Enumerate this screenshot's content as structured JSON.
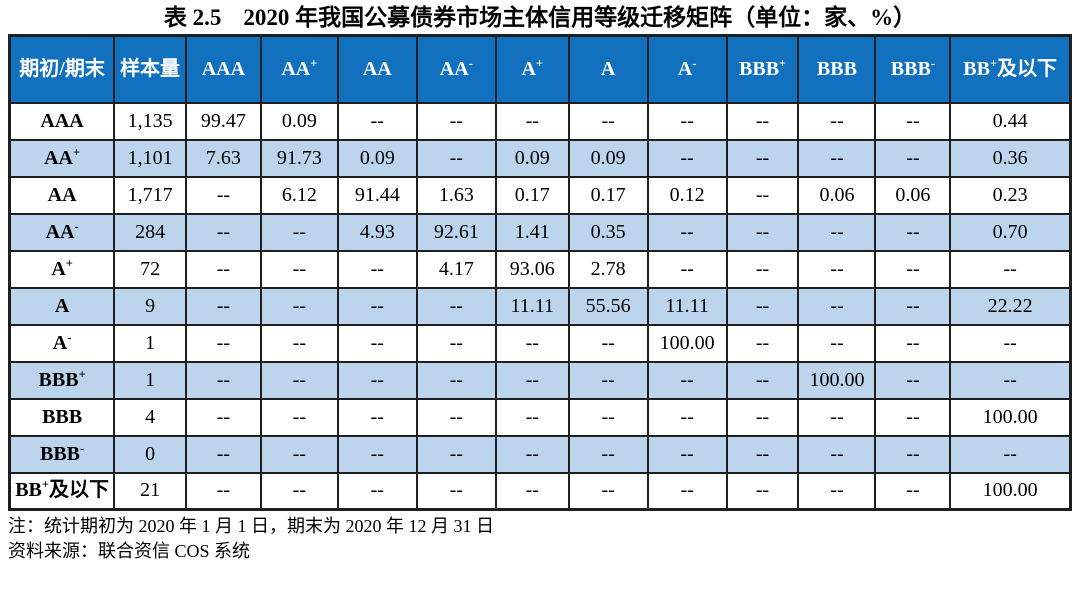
{
  "title": {
    "label": "表 2.5",
    "text": "2020 年我国公募债券市场主体信用等级迁移矩阵（单位：家、%）"
  },
  "colors": {
    "header_bg": "#1171be",
    "header_text": "#ffffff",
    "alt_row_bg": "#bcd5ec",
    "border": "#1f1f1f"
  },
  "chart_data": {
    "type": "table",
    "title": "表 2.5 2020 年我国公募债券市场主体信用等级迁移矩阵（单位：家、%）",
    "header": [
      {
        "base": "期初/期末"
      },
      {
        "base": "样本量"
      },
      {
        "base": "AAA"
      },
      {
        "base": "AA",
        "sup": "+"
      },
      {
        "base": "AA"
      },
      {
        "base": "AA",
        "sup": "-"
      },
      {
        "base": "A",
        "sup": "+"
      },
      {
        "base": "A"
      },
      {
        "base": "A",
        "sup": "-"
      },
      {
        "base": "BBB",
        "sup": "+"
      },
      {
        "base": "BBB"
      },
      {
        "base": "BBB",
        "sup": "-"
      },
      {
        "base": "BB",
        "sup": "+",
        "suffix": "及以下"
      }
    ],
    "rows": [
      {
        "label": {
          "base": "AAA"
        },
        "sample": "1,135",
        "values": [
          "99.47",
          "0.09",
          "--",
          "--",
          "--",
          "--",
          "--",
          "--",
          "--",
          "--",
          "0.44"
        ]
      },
      {
        "label": {
          "base": "AA",
          "sup": "+"
        },
        "sample": "1,101",
        "values": [
          "7.63",
          "91.73",
          "0.09",
          "--",
          "0.09",
          "0.09",
          "--",
          "--",
          "--",
          "--",
          "0.36"
        ]
      },
      {
        "label": {
          "base": "AA"
        },
        "sample": "1,717",
        "values": [
          "--",
          "6.12",
          "91.44",
          "1.63",
          "0.17",
          "0.17",
          "0.12",
          "--",
          "0.06",
          "0.06",
          "0.23"
        ]
      },
      {
        "label": {
          "base": "AA",
          "sup": "-"
        },
        "sample": "284",
        "values": [
          "--",
          "--",
          "4.93",
          "92.61",
          "1.41",
          "0.35",
          "--",
          "--",
          "--",
          "--",
          "0.70"
        ]
      },
      {
        "label": {
          "base": "A",
          "sup": "+"
        },
        "sample": "72",
        "values": [
          "--",
          "--",
          "--",
          "4.17",
          "93.06",
          "2.78",
          "--",
          "--",
          "--",
          "--",
          "--"
        ]
      },
      {
        "label": {
          "base": "A"
        },
        "sample": "9",
        "values": [
          "--",
          "--",
          "--",
          "--",
          "11.11",
          "55.56",
          "11.11",
          "--",
          "--",
          "--",
          "22.22"
        ]
      },
      {
        "label": {
          "base": "A",
          "sup": "-"
        },
        "sample": "1",
        "values": [
          "--",
          "--",
          "--",
          "--",
          "--",
          "--",
          "100.00",
          "--",
          "--",
          "--",
          "--"
        ]
      },
      {
        "label": {
          "base": "BBB",
          "sup": "+"
        },
        "sample": "1",
        "values": [
          "--",
          "--",
          "--",
          "--",
          "--",
          "--",
          "--",
          "--",
          "100.00",
          "--",
          "--"
        ]
      },
      {
        "label": {
          "base": "BBB"
        },
        "sample": "4",
        "values": [
          "--",
          "--",
          "--",
          "--",
          "--",
          "--",
          "--",
          "--",
          "--",
          "--",
          "100.00"
        ]
      },
      {
        "label": {
          "base": "BBB",
          "sup": "-"
        },
        "sample": "0",
        "values": [
          "--",
          "--",
          "--",
          "--",
          "--",
          "--",
          "--",
          "--",
          "--",
          "--",
          "--"
        ]
      },
      {
        "label": {
          "base": "BB",
          "sup": "+",
          "suffix": "及以下"
        },
        "sample": "21",
        "values": [
          "--",
          "--",
          "--",
          "--",
          "--",
          "--",
          "--",
          "--",
          "--",
          "--",
          "100.00"
        ]
      }
    ]
  },
  "notes": [
    "注：统计期初为 2020 年 1 月 1 日，期末为 2020 年 12 月 31 日",
    "资料来源：联合资信 COS 系统"
  ]
}
